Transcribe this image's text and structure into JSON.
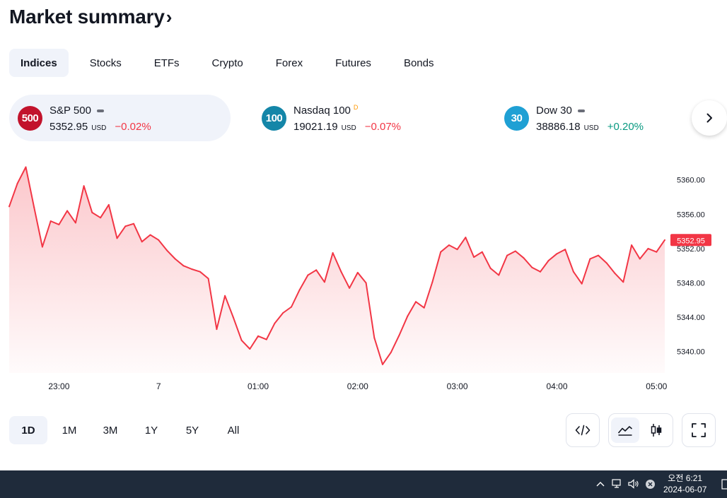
{
  "header": {
    "title": "Market summary",
    "chevron": "›"
  },
  "tabs": [
    {
      "label": "Indices",
      "active": true
    },
    {
      "label": "Stocks"
    },
    {
      "label": "ETFs"
    },
    {
      "label": "Crypto"
    },
    {
      "label": "Forex"
    },
    {
      "label": "Futures"
    },
    {
      "label": "Bonds"
    }
  ],
  "symbols": [
    {
      "badge": "500",
      "badge_color": "#c2132c",
      "name": "S&P 500",
      "price": "5352.95",
      "currency": "USD",
      "change": "−0.02%",
      "direction": "neg",
      "marker": "dash",
      "active": true
    },
    {
      "badge": "100",
      "badge_color": "#1486a8",
      "name": "Nasdaq 100",
      "price": "19021.19",
      "currency": "USD",
      "change": "−0.07%",
      "direction": "neg",
      "marker": "D"
    },
    {
      "badge": "30",
      "badge_color": "#1fa0d4",
      "name": "Dow 30",
      "price": "38886.18",
      "currency": "USD",
      "change": "+0.20%",
      "direction": "pos",
      "marker": "dash"
    }
  ],
  "chart_data": {
    "type": "area",
    "title": "",
    "x_ticks": [
      "23:00",
      "7",
      "01:00",
      "02:00",
      "03:00",
      "04:00",
      "05:00"
    ],
    "y_ticks": [
      "5360.00",
      "5356.00",
      "5352.00",
      "5348.00",
      "5344.00",
      "5340.00"
    ],
    "ylim": [
      5337.5,
      5362.2
    ],
    "last_price_label": "5352.95",
    "line_color": "#f23645",
    "grid": false,
    "x": [
      "22:30",
      "22:35",
      "22:40",
      "22:45",
      "22:50",
      "22:55",
      "23:00",
      "23:05",
      "23:10",
      "23:15",
      "23:20",
      "23:25",
      "23:30",
      "23:35",
      "23:40",
      "23:45",
      "23:50",
      "23:55",
      "00:00",
      "00:05",
      "00:10",
      "00:15",
      "00:20",
      "00:25",
      "00:30",
      "00:35",
      "00:40",
      "00:45",
      "00:50",
      "00:55",
      "01:00",
      "01:05",
      "01:10",
      "01:15",
      "01:20",
      "01:25",
      "01:30",
      "01:35",
      "01:40",
      "01:45",
      "01:50",
      "01:55",
      "02:00",
      "02:05",
      "02:10",
      "02:15",
      "02:20",
      "02:25",
      "02:30",
      "02:35",
      "02:40",
      "02:45",
      "02:50",
      "02:55",
      "03:00",
      "03:05",
      "03:10",
      "03:15",
      "03:20",
      "03:25",
      "03:30",
      "03:35",
      "03:40",
      "03:45",
      "03:50",
      "03:55",
      "04:00",
      "04:05",
      "04:10",
      "04:15",
      "04:20",
      "04:25",
      "04:30",
      "04:35",
      "04:40",
      "04:45",
      "04:50",
      "04:55",
      "05:00",
      "05:05"
    ],
    "values": [
      5356.9,
      5359.6,
      5361.5,
      5356.8,
      5352.2,
      5355.2,
      5354.8,
      5356.4,
      5355.0,
      5359.3,
      5356.2,
      5355.6,
      5357.1,
      5353.2,
      5354.6,
      5354.9,
      5352.8,
      5353.6,
      5353.0,
      5351.8,
      5350.8,
      5350.0,
      5349.6,
      5349.3,
      5348.5,
      5342.6,
      5346.5,
      5344.0,
      5341.3,
      5340.3,
      5341.8,
      5341.4,
      5343.3,
      5344.5,
      5345.2,
      5347.2,
      5348.9,
      5349.5,
      5348.1,
      5351.5,
      5349.3,
      5347.4,
      5349.2,
      5348.0,
      5341.6,
      5338.5,
      5339.9,
      5341.9,
      5344.1,
      5345.8,
      5345.1,
      5348.1,
      5351.6,
      5352.4,
      5351.9,
      5353.3,
      5351.0,
      5351.6,
      5349.7,
      5348.9,
      5351.2,
      5351.7,
      5350.9,
      5349.8,
      5349.3,
      5350.6,
      5351.4,
      5351.9,
      5349.3,
      5347.9,
      5350.8,
      5351.2,
      5350.3,
      5349.1,
      5348.1,
      5352.4,
      5350.8,
      5352.0,
      5351.6,
      5353.0
    ]
  },
  "ranges": [
    {
      "label": "1D",
      "active": true
    },
    {
      "label": "1M"
    },
    {
      "label": "3M"
    },
    {
      "label": "1Y"
    },
    {
      "label": "5Y"
    },
    {
      "label": "All"
    }
  ],
  "controls": [
    "embed-icon",
    "area-chart-icon",
    "candles-icon",
    "fullscreen-icon"
  ],
  "taskbar": {
    "time": "오전 6:21",
    "date": "2024-06-07"
  }
}
